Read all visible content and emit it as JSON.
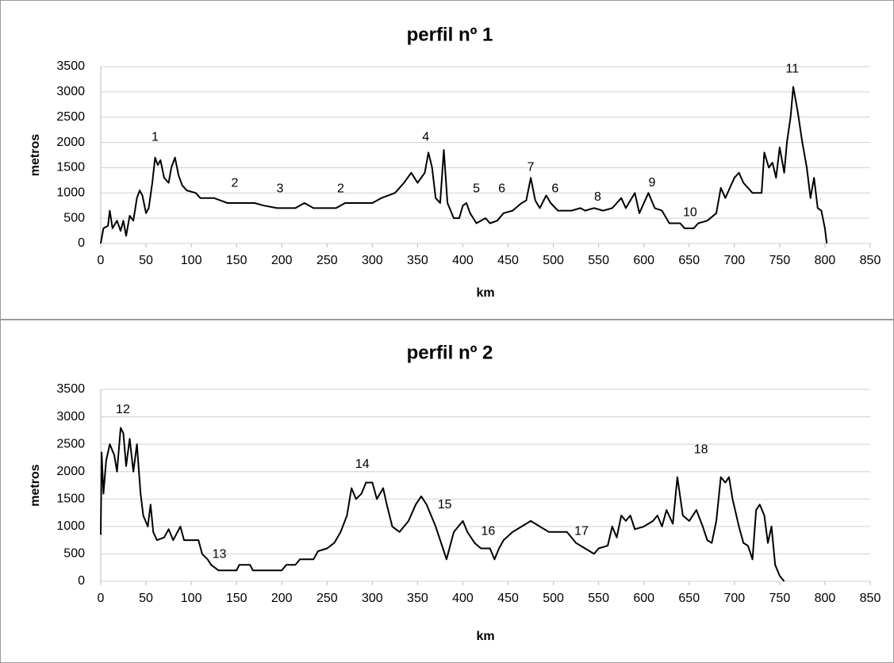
{
  "chart_data": [
    {
      "type": "line",
      "title": "perfil nº 1",
      "x_label": "km",
      "y_label": "metros",
      "color": "#000000",
      "grid": true,
      "xlim": [
        0,
        850
      ],
      "xticks": [
        0,
        50,
        100,
        150,
        200,
        250,
        300,
        350,
        400,
        450,
        500,
        550,
        600,
        650,
        700,
        750,
        800,
        850
      ],
      "ylim": [
        0,
        3500
      ],
      "yticks": [
        0,
        500,
        1000,
        1500,
        2000,
        2500,
        3000,
        3500
      ],
      "x": [
        0,
        3,
        8,
        10,
        13,
        18,
        22,
        25,
        28,
        32,
        36,
        40,
        43,
        46,
        50,
        53,
        57,
        60,
        63,
        66,
        70,
        75,
        78,
        82,
        86,
        90,
        95,
        105,
        110,
        125,
        140,
        170,
        180,
        195,
        215,
        225,
        235,
        260,
        270,
        300,
        310,
        325,
        335,
        343,
        350,
        358,
        362,
        366,
        370,
        375,
        379,
        383,
        390,
        396,
        400,
        404,
        408,
        415,
        425,
        430,
        438,
        445,
        455,
        465,
        470,
        475,
        480,
        485,
        492,
        497,
        505,
        520,
        530,
        535,
        545,
        555,
        565,
        575,
        580,
        590,
        595,
        605,
        612,
        620,
        628,
        640,
        645,
        655,
        660,
        670,
        680,
        685,
        690,
        695,
        700,
        705,
        710,
        720,
        730,
        733,
        738,
        742,
        746,
        750,
        755,
        758,
        762,
        765,
        770,
        775,
        780,
        784,
        788,
        792,
        796,
        800,
        802
      ],
      "values": [
        0,
        300,
        350,
        650,
        300,
        450,
        250,
        450,
        150,
        550,
        450,
        900,
        1050,
        950,
        600,
        700,
        1200,
        1700,
        1550,
        1650,
        1300,
        1200,
        1500,
        1700,
        1350,
        1150,
        1050,
        1000,
        900,
        900,
        800,
        800,
        750,
        700,
        700,
        800,
        700,
        700,
        800,
        800,
        900,
        1000,
        1200,
        1400,
        1200,
        1400,
        1800,
        1500,
        900,
        800,
        1850,
        800,
        500,
        500,
        750,
        800,
        600,
        400,
        500,
        400,
        450,
        600,
        650,
        800,
        850,
        1300,
        850,
        700,
        950,
        800,
        650,
        650,
        700,
        650,
        700,
        650,
        700,
        900,
        700,
        1000,
        600,
        1000,
        700,
        650,
        400,
        400,
        300,
        300,
        400,
        450,
        600,
        1100,
        900,
        1100,
        1300,
        1400,
        1200,
        1000,
        1000,
        1800,
        1500,
        1600,
        1300,
        1900,
        1400,
        2000,
        2500,
        3100,
        2600,
        2000,
        1500,
        900,
        1300,
        700,
        650,
        300,
        0
      ],
      "annotations": [
        {
          "text": "1",
          "x": 60,
          "y": 2100
        },
        {
          "text": "2",
          "x": 148,
          "y": 1190
        },
        {
          "text": "3",
          "x": 198,
          "y": 1080
        },
        {
          "text": "2",
          "x": 265,
          "y": 1080
        },
        {
          "text": "4",
          "x": 359,
          "y": 2100
        },
        {
          "text": "5",
          "x": 415,
          "y": 1080
        },
        {
          "text": "6",
          "x": 443,
          "y": 1080
        },
        {
          "text": "7",
          "x": 475,
          "y": 1500
        },
        {
          "text": "6",
          "x": 502,
          "y": 1080
        },
        {
          "text": "8",
          "x": 549,
          "y": 910
        },
        {
          "text": "9",
          "x": 609,
          "y": 1200
        },
        {
          "text": "10",
          "x": 651,
          "y": 610
        },
        {
          "text": "11",
          "x": 764,
          "y": 3450
        }
      ]
    },
    {
      "type": "line",
      "title": "perfil nº 2",
      "x_label": "km",
      "y_label": "metros",
      "color": "#000000",
      "grid": true,
      "xlim": [
        0,
        850
      ],
      "xticks": [
        0,
        50,
        100,
        150,
        200,
        250,
        300,
        350,
        400,
        450,
        500,
        550,
        600,
        650,
        700,
        750,
        800,
        850
      ],
      "ylim": [
        0,
        3500
      ],
      "yticks": [
        0,
        500,
        1000,
        1500,
        2000,
        2500,
        3000,
        3500
      ],
      "x": [
        0,
        1,
        3,
        6,
        10,
        15,
        18,
        22,
        25,
        28,
        32,
        36,
        40,
        44,
        47,
        52,
        55,
        58,
        62,
        70,
        75,
        80,
        88,
        92,
        100,
        108,
        112,
        118,
        122,
        130,
        150,
        153,
        165,
        168,
        200,
        205,
        215,
        220,
        235,
        240,
        250,
        258,
        265,
        272,
        277,
        282,
        288,
        293,
        300,
        305,
        312,
        316,
        322,
        330,
        340,
        348,
        354,
        360,
        365,
        370,
        378,
        382,
        390,
        395,
        400,
        405,
        413,
        420,
        430,
        435,
        440,
        445,
        455,
        465,
        475,
        485,
        495,
        515,
        525,
        535,
        545,
        550,
        560,
        565,
        570,
        575,
        580,
        585,
        590,
        600,
        610,
        615,
        620,
        625,
        632,
        637,
        643,
        650,
        658,
        665,
        670,
        675,
        680,
        685,
        690,
        694,
        698,
        705,
        710,
        715,
        720,
        724,
        728,
        733,
        737,
        741,
        745,
        750,
        755
      ],
      "values": [
        850,
        2350,
        1600,
        2200,
        2500,
        2300,
        2000,
        2800,
        2700,
        2100,
        2600,
        2000,
        2500,
        1600,
        1200,
        1000,
        1400,
        900,
        750,
        800,
        950,
        750,
        1000,
        750,
        750,
        750,
        500,
        400,
        300,
        200,
        200,
        300,
        300,
        200,
        200,
        300,
        300,
        400,
        400,
        550,
        600,
        700,
        900,
        1200,
        1700,
        1500,
        1600,
        1800,
        1800,
        1500,
        1700,
        1400,
        1000,
        900,
        1100,
        1400,
        1550,
        1400,
        1200,
        1000,
        600,
        400,
        900,
        1000,
        1100,
        900,
        700,
        600,
        600,
        400,
        600,
        750,
        900,
        1000,
        1100,
        1000,
        900,
        900,
        700,
        600,
        500,
        600,
        650,
        1000,
        800,
        1200,
        1100,
        1200,
        950,
        1000,
        1100,
        1200,
        1000,
        1300,
        1050,
        1900,
        1200,
        1100,
        1300,
        1000,
        750,
        700,
        1100,
        1900,
        1800,
        1900,
        1500,
        1000,
        700,
        650,
        400,
        1300,
        1400,
        1200,
        700,
        1000,
        300,
        100,
        0
      ],
      "annotations": [
        {
          "text": "12",
          "x": 24.5,
          "y": 3125
        },
        {
          "text": "13",
          "x": 131,
          "y": 490
        },
        {
          "text": "14",
          "x": 289,
          "y": 2130
        },
        {
          "text": "15",
          "x": 380,
          "y": 1390
        },
        {
          "text": "16",
          "x": 428,
          "y": 910
        },
        {
          "text": "17",
          "x": 531,
          "y": 910
        },
        {
          "text": "18",
          "x": 663,
          "y": 2400
        }
      ]
    }
  ]
}
